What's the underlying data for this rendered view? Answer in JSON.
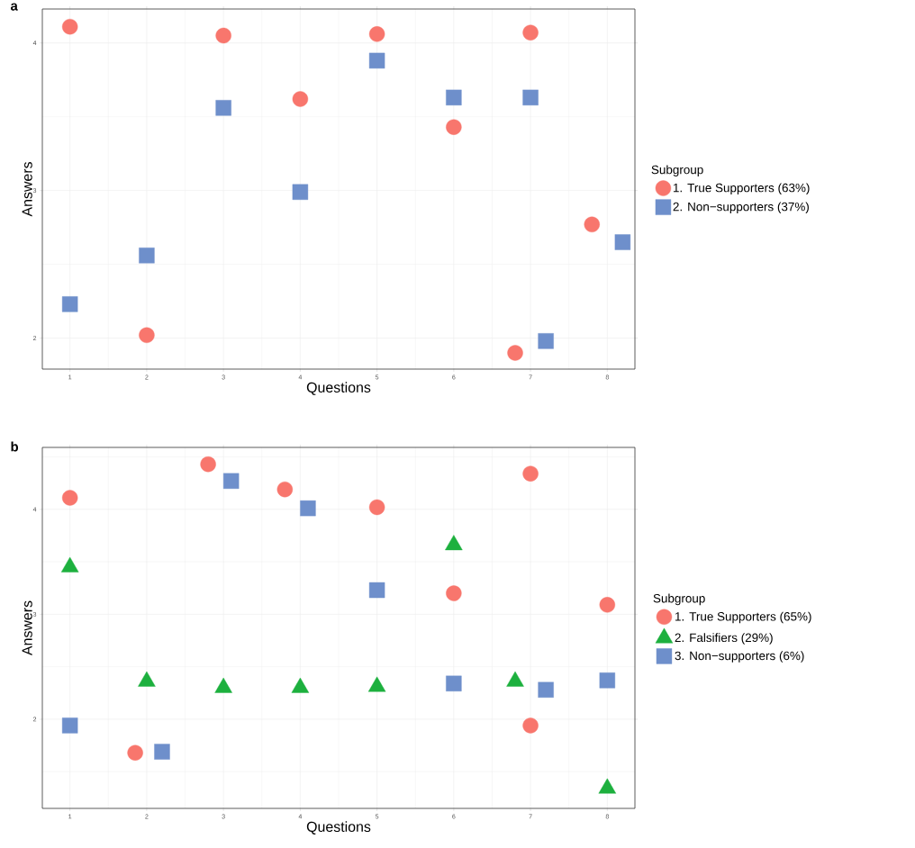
{
  "chart_data": [
    {
      "type": "scatter",
      "title": "a",
      "xlabel": "Questions",
      "ylabel": "Answers",
      "legend_title": "Subgroup",
      "legend": "right",
      "grid": true,
      "xlim": [
        0.64,
        8.36
      ],
      "ylim": [
        1.79,
        4.23
      ],
      "xticks": [
        1,
        2,
        3,
        4,
        5,
        6,
        7,
        8
      ],
      "yticks": [
        2,
        3,
        4
      ],
      "series": [
        {
          "name": "1. True Supporters (63%)",
          "color": "#F8766D",
          "marker": "circle",
          "x": [
            1,
            2,
            3,
            4,
            5,
            6,
            6.8,
            7,
            7.8
          ],
          "values": [
            4.11,
            2.02,
            4.05,
            3.62,
            4.06,
            3.43,
            1.9,
            4.07,
            2.77
          ]
        },
        {
          "name": "2. Non−supporters (37%)",
          "color": "#6E8FCB",
          "marker": "square",
          "x": [
            1,
            2,
            3,
            4,
            5,
            6,
            7,
            7.2,
            8.2
          ],
          "values": [
            2.23,
            2.56,
            3.56,
            2.99,
            3.88,
            3.63,
            3.63,
            1.98,
            2.65
          ]
        }
      ]
    },
    {
      "type": "scatter",
      "title": "b",
      "xlabel": "Questions",
      "ylabel": "Answers",
      "legend_title": "Subgroup",
      "legend": "right",
      "grid": true,
      "xlim": [
        0.64,
        8.36
      ],
      "ylim": [
        1.15,
        4.59
      ],
      "xticks": [
        1,
        2,
        3,
        4,
        5,
        6,
        7,
        8
      ],
      "yticks": [
        2,
        3,
        4
      ],
      "series": [
        {
          "name": "1. True Supporters (65%)",
          "color": "#F8766D",
          "marker": "circle",
          "x": [
            1,
            1.85,
            2.8,
            3.8,
            5,
            6,
            7,
            7,
            8
          ],
          "values": [
            4.11,
            1.68,
            4.43,
            4.19,
            4.02,
            3.2,
            4.34,
            1.94,
            3.09
          ]
        },
        {
          "name": "2. Falsifiers (29%)",
          "color": "#1DB03E",
          "marker": "triangle",
          "x": [
            1,
            2,
            3,
            4,
            5,
            6,
            6.8,
            8
          ],
          "values": [
            3.45,
            2.36,
            2.3,
            2.3,
            2.31,
            3.66,
            2.36,
            1.34
          ]
        },
        {
          "name": "3. Non−supporters (6%)",
          "color": "#6E8FCB",
          "marker": "square",
          "x": [
            1,
            2.2,
            3.1,
            4.1,
            5,
            6,
            7.2,
            8
          ],
          "values": [
            1.94,
            1.69,
            4.27,
            4.01,
            3.23,
            2.34,
            2.28,
            2.37
          ]
        }
      ]
    }
  ]
}
